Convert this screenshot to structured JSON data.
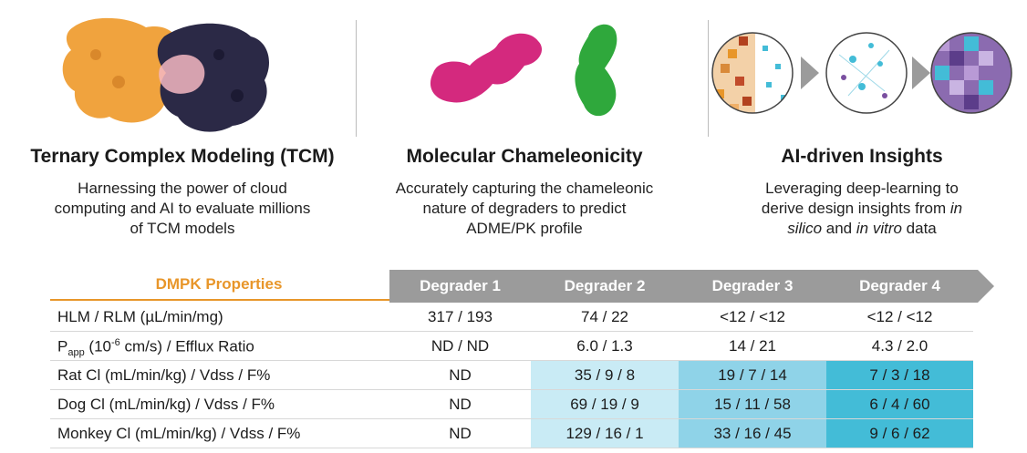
{
  "panels": [
    {
      "title": "Ternary Complex Modeling (TCM)",
      "desc_lines": [
        "Harnessing the power of cloud",
        "computing and AI to evaluate millions",
        "of TCM models"
      ]
    },
    {
      "title": "Molecular Chameleonicity",
      "desc_lines": [
        "Accurately capturing the chameleonic",
        "nature of degraders to predict",
        "ADME/PK profile"
      ]
    },
    {
      "title": "AI-driven Insights",
      "desc_line1": "Leveraging deep-learning to",
      "desc_line2_pre": "derive design insights from ",
      "desc_line2_em": "in",
      "desc_line3_em1": "silico",
      "desc_line3_mid": " and ",
      "desc_line3_em2": "in vitro",
      "desc_line3_post": " data"
    }
  ],
  "table": {
    "properties_header": "DMPK Properties",
    "columns": [
      "Degrader 1",
      "Degrader 2",
      "Degrader 3",
      "Degrader 4"
    ],
    "colors": {
      "header_arrow": "#9b9b9b",
      "accent_orange": "#e8962a",
      "shade_light": "#c9ebf5",
      "shade_mid": "#8fd3e8",
      "shade_dark": "#43bcd7"
    },
    "rows": [
      {
        "label": "HLM / RLM (µL/min/mg)",
        "values": [
          "317 / 193",
          "74 / 22",
          "<12 / <12",
          "<12 / <12"
        ]
      },
      {
        "label_main": "P",
        "label_sub": "app",
        "label_mid": " (10",
        "label_sup": "-6",
        "label_end": " cm/s) / Efflux Ratio",
        "values": [
          "ND / ND",
          "6.0 / 1.3",
          "14 / 21",
          "4.3 / 2.0"
        ]
      },
      {
        "label": "Rat Cl (mL/min/kg) / Vdss / F%",
        "values": [
          "ND",
          "35 / 9 / 8",
          "19 / 7 / 14",
          "7 / 3 / 18"
        ]
      },
      {
        "label": "Dog Cl (mL/min/kg) / Vdss / F%",
        "values": [
          "ND",
          "69 / 19 / 9",
          "15 / 11 / 58",
          "6 / 4 / 60"
        ]
      },
      {
        "label": "Monkey Cl (mL/min/kg) / Vdss / F%",
        "values": [
          "ND",
          "129 / 16 / 1",
          "33 / 16 / 45",
          "9 / 6 / 62"
        ]
      }
    ]
  }
}
